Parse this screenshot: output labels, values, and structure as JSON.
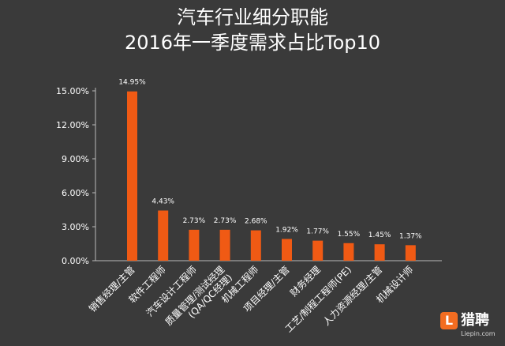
{
  "title_line1": "汽车行业细分职能",
  "title_line2": "2016年一季度需求占比Top10",
  "logo": {
    "badge": "L",
    "name": "猎聘",
    "site": "Liepin.com",
    "accent": "#f36d21"
  },
  "chart_data": {
    "type": "bar",
    "categories": [
      "销售经理/主管",
      "软件工程师",
      "汽车设计工程师",
      "质量管理/测试经理(QA/QC经理)",
      "机械工程师",
      "项目经理/主管",
      "财务经理",
      "工艺/制程工程师(PE)",
      "人力资源经理/主管",
      "机械设计师"
    ],
    "values": [
      14.95,
      4.43,
      2.73,
      2.73,
      2.68,
      1.92,
      1.77,
      1.55,
      1.45,
      1.37
    ],
    "data_labels": [
      "14.95%",
      "4.43%",
      "2.73%",
      "2.73%",
      "2.68%",
      "1.92%",
      "1.77%",
      "1.55%",
      "1.45%",
      "1.37%"
    ],
    "yticks": [
      "0.00%",
      "3.00%",
      "6.00%",
      "9.00%",
      "12.00%",
      "15.00%"
    ],
    "ytick_values": [
      0,
      3,
      6,
      9,
      12,
      15
    ],
    "ylim": [
      0,
      15
    ],
    "grid": false,
    "bar_color": "#f05a14",
    "axis_color": "#bbbbbb",
    "text_color": "#ffffff"
  }
}
